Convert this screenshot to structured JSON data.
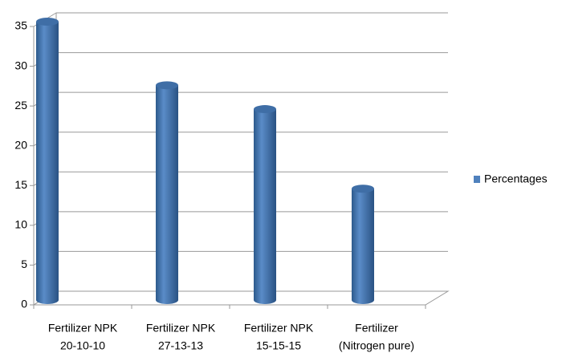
{
  "chart_data": {
    "type": "bar",
    "categories": [
      [
        "Fertilizer NPK",
        "20-10-10"
      ],
      [
        "Fertilizer NPK",
        "27-13-13"
      ],
      [
        "Fertilizer NPK",
        "15-15-15"
      ],
      [
        "Fertilizer",
        "(Nitrogen pure)"
      ]
    ],
    "series": [
      {
        "name": "Percentages",
        "color": "#4f81bd",
        "values": [
          35,
          27,
          24,
          14
        ]
      }
    ],
    "ylim": [
      0,
      35
    ],
    "yticks": [
      0,
      5,
      10,
      15,
      20,
      25,
      30,
      35
    ],
    "grid": true,
    "legend": "right"
  }
}
